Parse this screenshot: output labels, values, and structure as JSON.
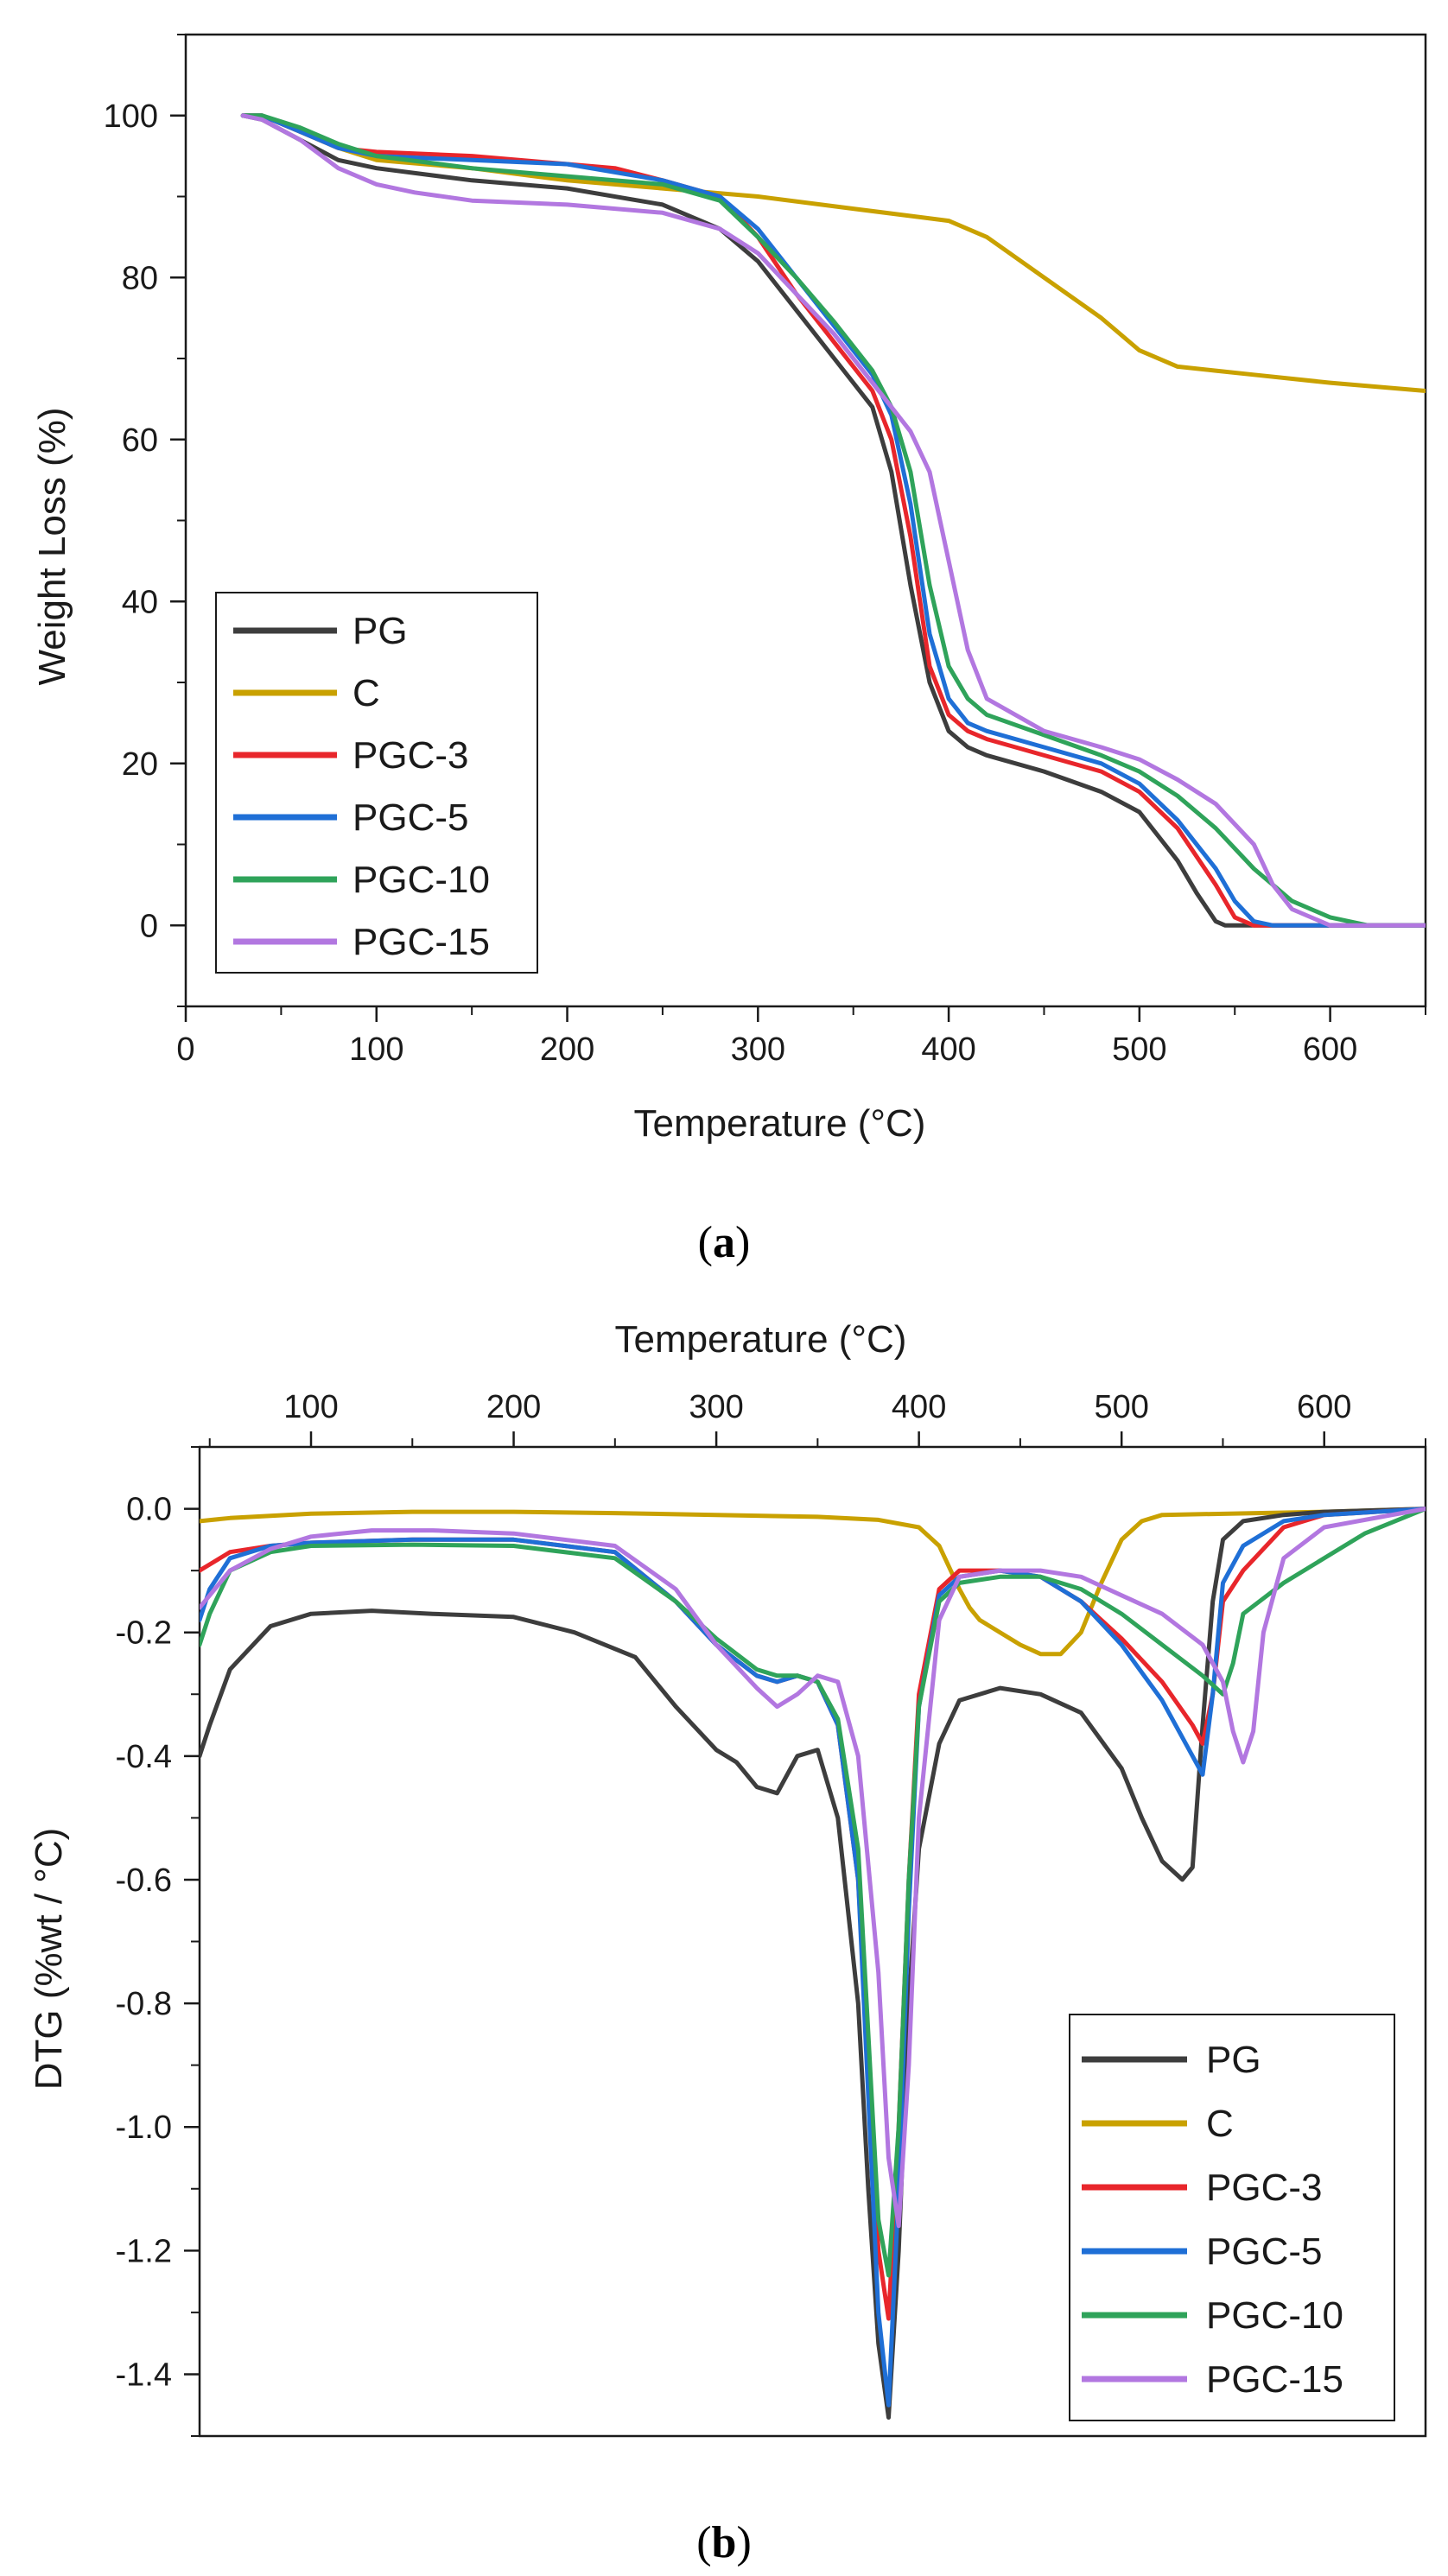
{
  "colors": {
    "PG": "#3d3d3d",
    "C": "#c9a100",
    "PGC-3": "#e8262b",
    "PGC-5": "#1f6fd6",
    "PGC-10": "#2fa35a",
    "PGC-15": "#b277e0"
  },
  "panel_labels": {
    "a": "a",
    "b": "b"
  },
  "chart_data": [
    {
      "type": "line",
      "xlabel": "Temperature (°C)",
      "ylabel": "Weight Loss (%)",
      "xlim": [
        0,
        650
      ],
      "ylim": [
        -10,
        110
      ],
      "xticks": [
        0,
        100,
        200,
        300,
        400,
        500,
        600
      ],
      "yticks": [
        0,
        20,
        40,
        60,
        80,
        100
      ],
      "legend": "left",
      "grid": false,
      "series": [
        {
          "name": "PG",
          "x": [
            30,
            40,
            60,
            80,
            100,
            150,
            200,
            250,
            280,
            300,
            320,
            340,
            360,
            370,
            380,
            390,
            400,
            410,
            420,
            450,
            480,
            500,
            520,
            530,
            540,
            545,
            560,
            650
          ],
          "y": [
            100,
            99.5,
            97,
            94.5,
            93.5,
            92,
            91,
            89,
            86,
            82,
            76,
            70,
            64,
            56,
            42,
            30,
            24,
            22,
            21,
            19,
            16.5,
            14,
            8,
            4,
            0.5,
            0,
            0,
            0
          ]
        },
        {
          "name": "C",
          "x": [
            30,
            40,
            60,
            80,
            100,
            150,
            200,
            250,
            300,
            350,
            400,
            420,
            450,
            480,
            500,
            520,
            540,
            560,
            600,
            650
          ],
          "y": [
            100,
            100,
            98,
            96,
            94.5,
            93.5,
            92,
            91,
            90,
            88.5,
            87,
            85,
            80,
            75,
            71,
            69,
            68.5,
            68,
            67,
            66
          ]
        },
        {
          "name": "PGC-3",
          "x": [
            30,
            40,
            60,
            80,
            100,
            150,
            200,
            225,
            250,
            280,
            300,
            320,
            340,
            360,
            370,
            380,
            390,
            400,
            410,
            420,
            450,
            480,
            500,
            520,
            540,
            550,
            560,
            650
          ],
          "y": [
            100,
            100,
            98,
            96,
            95.5,
            95,
            94,
            93.5,
            92,
            90,
            85,
            78,
            72,
            66,
            60,
            48,
            32,
            26,
            24,
            23,
            21,
            19,
            16.5,
            12,
            5,
            1,
            0,
            0
          ]
        },
        {
          "name": "PGC-5",
          "x": [
            30,
            40,
            60,
            80,
            100,
            150,
            200,
            250,
            280,
            300,
            320,
            340,
            360,
            370,
            380,
            390,
            400,
            410,
            420,
            450,
            480,
            500,
            520,
            540,
            550,
            560,
            570,
            650
          ],
          "y": [
            100,
            100,
            98,
            96,
            95,
            94.5,
            94,
            92,
            90,
            86,
            80,
            74,
            68,
            63,
            52,
            36,
            28,
            25,
            24,
            22,
            20,
            17.5,
            13,
            7,
            3,
            0.5,
            0,
            0
          ]
        },
        {
          "name": "PGC-10",
          "x": [
            30,
            40,
            60,
            80,
            100,
            150,
            200,
            250,
            280,
            300,
            320,
            340,
            360,
            370,
            380,
            390,
            400,
            410,
            420,
            450,
            480,
            500,
            520,
            540,
            560,
            580,
            600,
            620,
            650
          ],
          "y": [
            100,
            100,
            98.5,
            96.5,
            95,
            93.5,
            92.5,
            91.5,
            89.5,
            85,
            80,
            74.5,
            68.5,
            64,
            56,
            42,
            32,
            28,
            26,
            23.5,
            21,
            19,
            16,
            12,
            7,
            3,
            1,
            0,
            0
          ]
        },
        {
          "name": "PGC-15",
          "x": [
            30,
            40,
            60,
            80,
            100,
            120,
            150,
            200,
            250,
            280,
            300,
            320,
            340,
            360,
            380,
            390,
            400,
            410,
            420,
            450,
            480,
            500,
            520,
            540,
            560,
            570,
            580,
            600,
            650
          ],
          "y": [
            100,
            99.5,
            97,
            93.5,
            91.5,
            90.5,
            89.5,
            89,
            88,
            86,
            83,
            78,
            73,
            67,
            61,
            56,
            45,
            34,
            28,
            24,
            22,
            20.5,
            18,
            15,
            10,
            5,
            2,
            0,
            0
          ]
        }
      ]
    },
    {
      "type": "line",
      "xlabel": "Temperature (°C)",
      "ylabel": "DTG (%wt / °C)",
      "xlim": [
        45,
        650
      ],
      "ylim": [
        -1.5,
        0.1
      ],
      "xticks": [
        100,
        200,
        300,
        400,
        500,
        600
      ],
      "yticks": [
        0.0,
        -0.2,
        -0.4,
        -0.6,
        -0.8,
        -1.0,
        -1.2,
        -1.4
      ],
      "xaxis_position": "top",
      "legend": "bottom-right",
      "grid": false,
      "series": [
        {
          "name": "PG",
          "x": [
            45,
            50,
            60,
            80,
            100,
            130,
            160,
            200,
            230,
            260,
            280,
            300,
            310,
            320,
            330,
            340,
            350,
            360,
            370,
            375,
            380,
            385,
            390,
            395,
            400,
            410,
            420,
            440,
            460,
            480,
            500,
            510,
            520,
            530,
            535,
            540,
            545,
            550,
            560,
            580,
            600,
            650
          ],
          "y": [
            -0.4,
            -0.35,
            -0.26,
            -0.19,
            -0.17,
            -0.165,
            -0.17,
            -0.175,
            -0.2,
            -0.24,
            -0.32,
            -0.39,
            -0.41,
            -0.45,
            -0.46,
            -0.4,
            -0.39,
            -0.5,
            -0.8,
            -1.1,
            -1.35,
            -1.47,
            -1.2,
            -0.8,
            -0.55,
            -0.38,
            -0.31,
            -0.29,
            -0.3,
            -0.33,
            -0.42,
            -0.5,
            -0.57,
            -0.6,
            -0.58,
            -0.35,
            -0.15,
            -0.05,
            -0.02,
            -0.01,
            -0.005,
            0
          ]
        },
        {
          "name": "C",
          "x": [
            45,
            60,
            100,
            150,
            200,
            250,
            300,
            350,
            380,
            400,
            410,
            420,
            425,
            430,
            440,
            450,
            460,
            470,
            480,
            490,
            500,
            510,
            520,
            600,
            650
          ],
          "y": [
            -0.02,
            -0.015,
            -0.008,
            -0.005,
            -0.005,
            -0.007,
            -0.01,
            -0.013,
            -0.018,
            -0.03,
            -0.06,
            -0.13,
            -0.16,
            -0.18,
            -0.2,
            -0.22,
            -0.235,
            -0.235,
            -0.2,
            -0.12,
            -0.05,
            -0.02,
            -0.01,
            -0.005,
            0
          ]
        },
        {
          "name": "PGC-3",
          "x": [
            45,
            50,
            60,
            80,
            100,
            150,
            200,
            250,
            280,
            300,
            320,
            330,
            340,
            350,
            360,
            370,
            375,
            380,
            385,
            390,
            395,
            400,
            410,
            420,
            440,
            460,
            480,
            500,
            520,
            535,
            540,
            545,
            550,
            560,
            580,
            600,
            650
          ],
          "y": [
            -0.1,
            -0.09,
            -0.07,
            -0.06,
            -0.055,
            -0.05,
            -0.05,
            -0.07,
            -0.15,
            -0.22,
            -0.27,
            -0.28,
            -0.27,
            -0.28,
            -0.35,
            -0.6,
            -0.9,
            -1.2,
            -1.31,
            -1.0,
            -0.6,
            -0.3,
            -0.13,
            -0.1,
            -0.1,
            -0.11,
            -0.15,
            -0.21,
            -0.28,
            -0.35,
            -0.38,
            -0.3,
            -0.15,
            -0.1,
            -0.03,
            -0.01,
            0
          ]
        },
        {
          "name": "PGC-5",
          "x": [
            45,
            50,
            60,
            80,
            100,
            150,
            200,
            250,
            280,
            300,
            320,
            330,
            340,
            350,
            360,
            370,
            375,
            380,
            385,
            390,
            395,
            400,
            410,
            420,
            440,
            460,
            480,
            500,
            520,
            535,
            540,
            545,
            550,
            560,
            580,
            600,
            650
          ],
          "y": [
            -0.18,
            -0.13,
            -0.08,
            -0.06,
            -0.055,
            -0.05,
            -0.05,
            -0.07,
            -0.15,
            -0.22,
            -0.27,
            -0.28,
            -0.27,
            -0.28,
            -0.35,
            -0.6,
            -0.95,
            -1.3,
            -1.45,
            -1.1,
            -0.65,
            -0.32,
            -0.14,
            -0.11,
            -0.1,
            -0.11,
            -0.15,
            -0.22,
            -0.31,
            -0.4,
            -0.43,
            -0.3,
            -0.12,
            -0.06,
            -0.02,
            -0.01,
            0
          ]
        },
        {
          "name": "PGC-10",
          "x": [
            45,
            50,
            60,
            80,
            100,
            150,
            200,
            250,
            280,
            300,
            320,
            330,
            340,
            350,
            360,
            370,
            375,
            380,
            385,
            390,
            395,
            400,
            410,
            420,
            440,
            460,
            480,
            500,
            520,
            540,
            550,
            555,
            560,
            580,
            600,
            620,
            650
          ],
          "y": [
            -0.22,
            -0.17,
            -0.1,
            -0.07,
            -0.06,
            -0.058,
            -0.06,
            -0.08,
            -0.15,
            -0.21,
            -0.26,
            -0.27,
            -0.27,
            -0.28,
            -0.34,
            -0.55,
            -0.85,
            -1.15,
            -1.24,
            -1.0,
            -0.6,
            -0.32,
            -0.15,
            -0.12,
            -0.11,
            -0.11,
            -0.13,
            -0.17,
            -0.22,
            -0.27,
            -0.3,
            -0.25,
            -0.17,
            -0.12,
            -0.08,
            -0.04,
            0
          ]
        },
        {
          "name": "PGC-15",
          "x": [
            45,
            50,
            60,
            80,
            100,
            130,
            160,
            200,
            250,
            280,
            300,
            320,
            330,
            340,
            350,
            360,
            370,
            380,
            385,
            390,
            395,
            400,
            410,
            420,
            440,
            460,
            480,
            500,
            520,
            540,
            550,
            555,
            560,
            565,
            570,
            580,
            600,
            650
          ],
          "y": [
            -0.16,
            -0.14,
            -0.1,
            -0.065,
            -0.045,
            -0.035,
            -0.035,
            -0.04,
            -0.06,
            -0.13,
            -0.22,
            -0.29,
            -0.32,
            -0.3,
            -0.27,
            -0.28,
            -0.4,
            -0.75,
            -1.05,
            -1.16,
            -0.9,
            -0.5,
            -0.18,
            -0.11,
            -0.1,
            -0.1,
            -0.11,
            -0.14,
            -0.17,
            -0.22,
            -0.28,
            -0.36,
            -0.41,
            -0.36,
            -0.2,
            -0.08,
            -0.03,
            0
          ]
        }
      ]
    }
  ]
}
